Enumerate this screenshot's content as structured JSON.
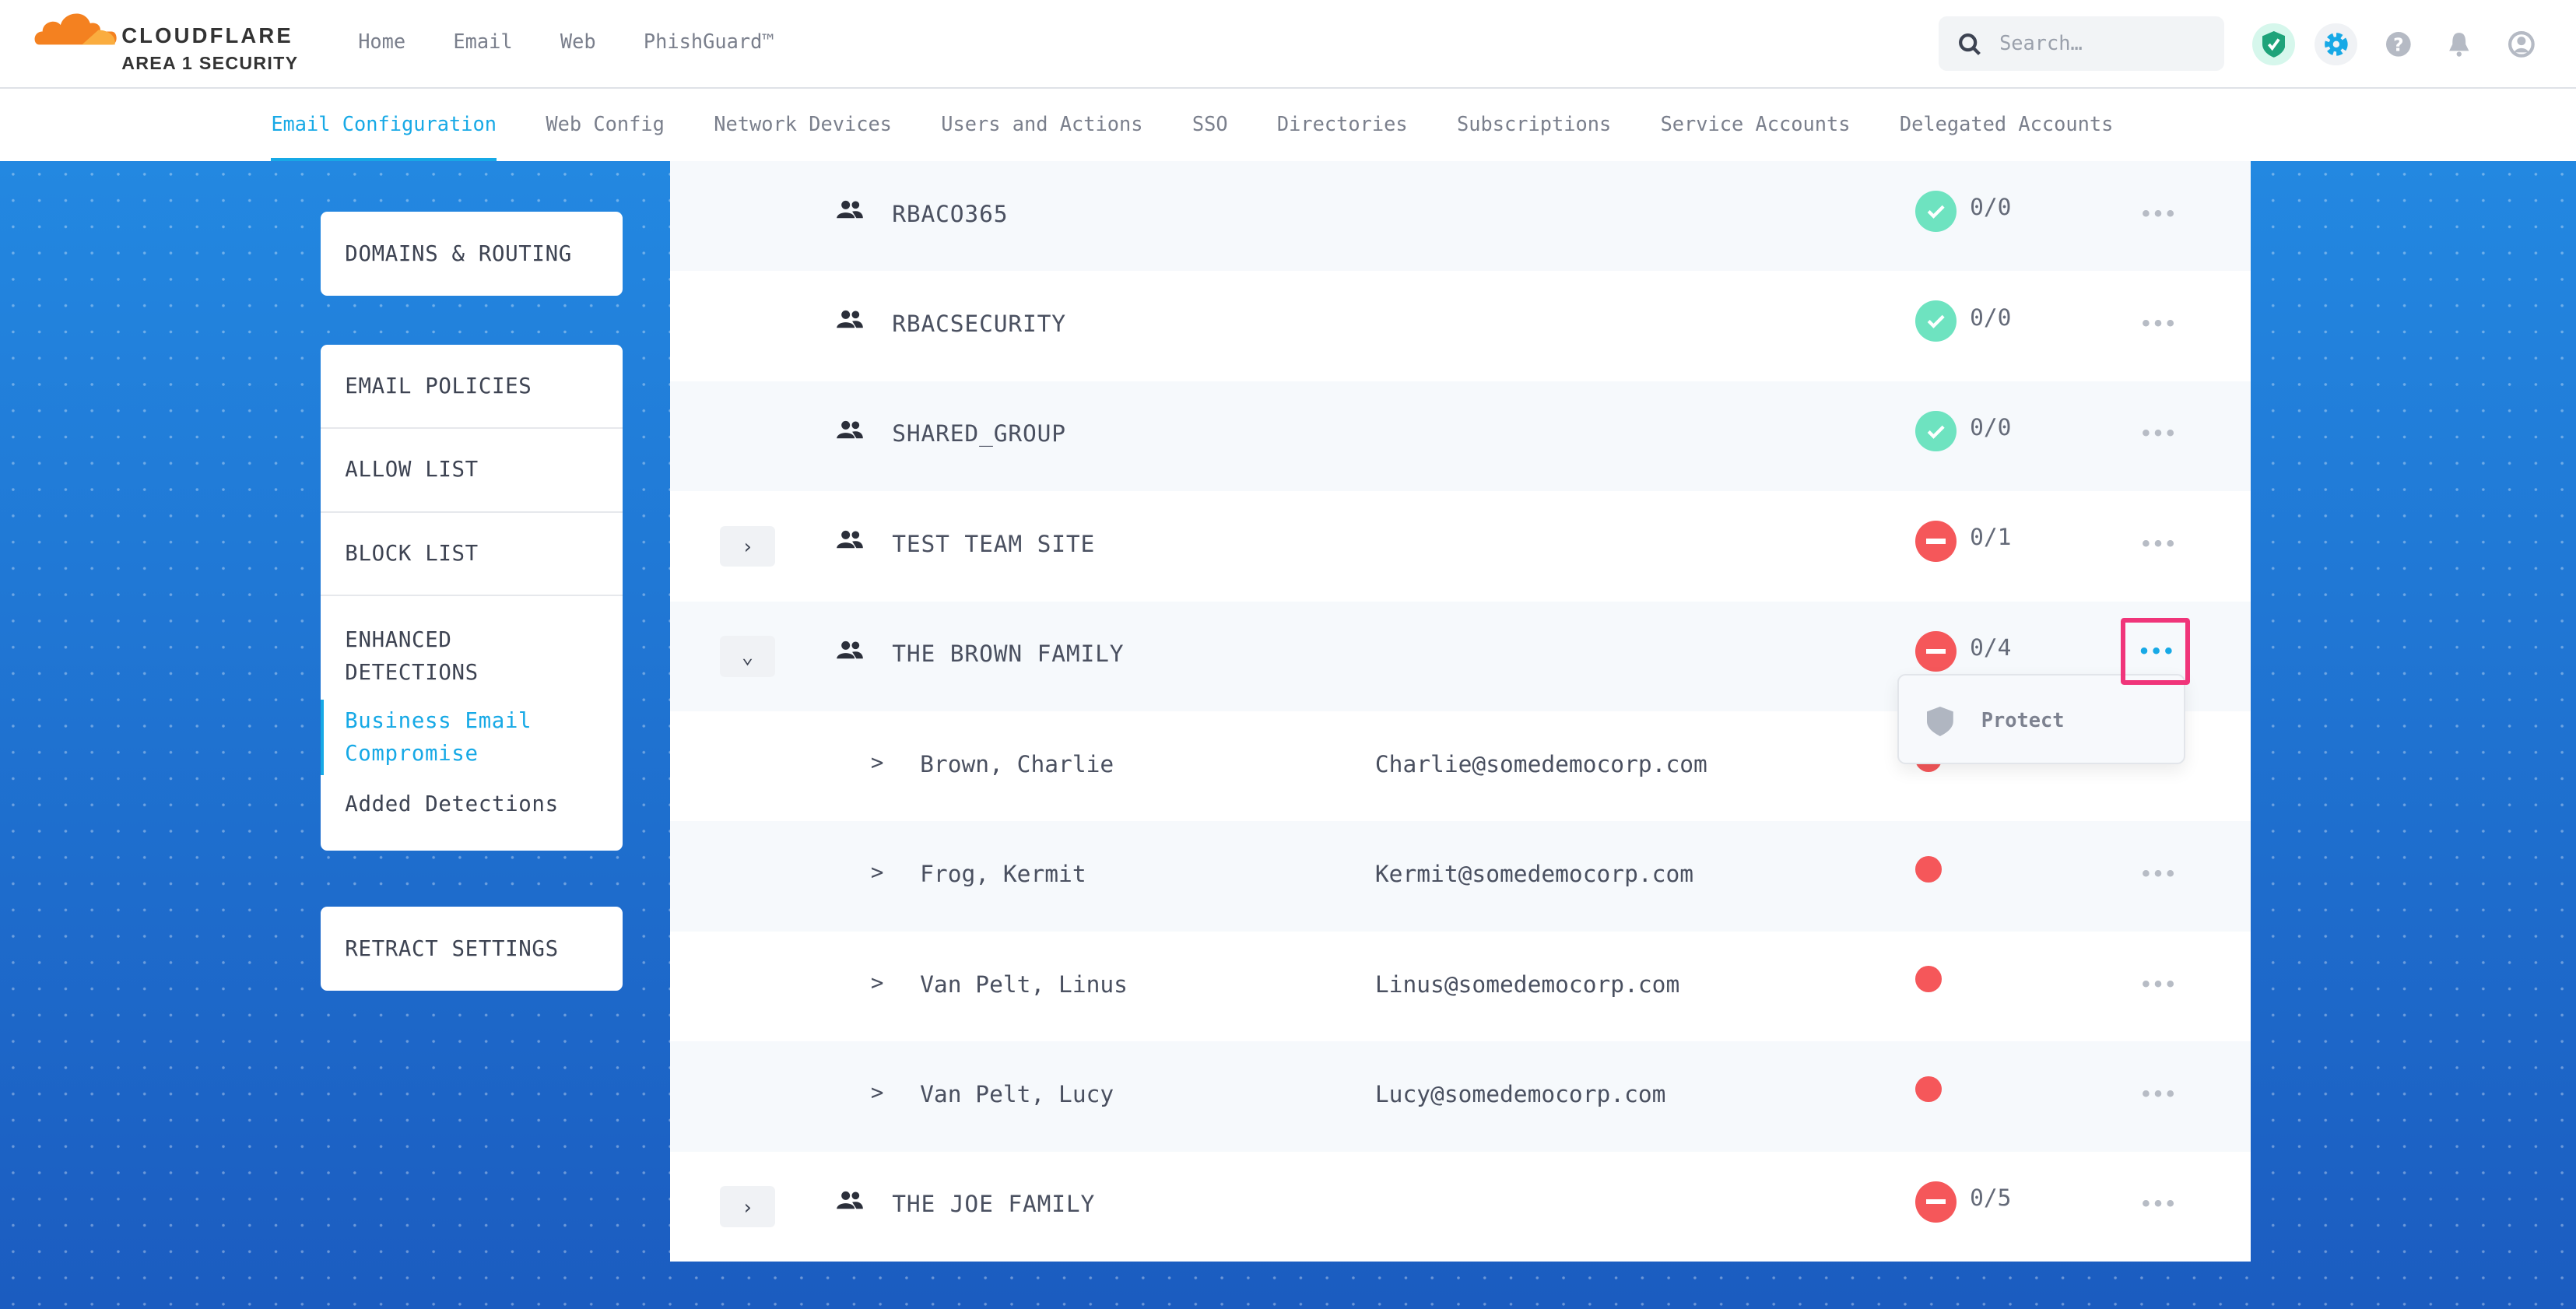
{
  "header": {
    "brand": "CLOUDFLARE",
    "brand_sub": "AREA 1 SECURITY",
    "nav": [
      "Home",
      "Email",
      "Web",
      "PhishGuard™"
    ],
    "search_placeholder": "Search…"
  },
  "subnav": {
    "tabs": [
      "Email Configuration",
      "Web Config",
      "Network Devices",
      "Users and Actions",
      "SSO",
      "Directories",
      "Subscriptions",
      "Service Accounts",
      "Delegated Accounts"
    ],
    "active": "Email Configuration"
  },
  "sidebar": {
    "card1": [
      "DOMAINS & ROUTING"
    ],
    "card2": [
      "EMAIL POLICIES",
      "ALLOW LIST",
      "BLOCK LIST"
    ],
    "enhanced": {
      "title_line1": "ENHANCED",
      "title_line2": "DETECTIONS",
      "links": [
        "Business Email Compromise",
        "Added Detections"
      ]
    },
    "card3": [
      "RETRACT SETTINGS"
    ]
  },
  "groups": [
    {
      "name": "RBACO365",
      "status": "ok",
      "count": "0/0"
    },
    {
      "name": "RBACSECURITY",
      "status": "ok",
      "count": "0/0"
    },
    {
      "name": "SHARED_GROUP",
      "status": "ok",
      "count": "0/0"
    },
    {
      "name": "TEST TEAM SITE",
      "status": "blocked",
      "count": "0/1",
      "expand": "collapsed"
    },
    {
      "name": "THE BROWN FAMILY",
      "status": "blocked",
      "count": "0/4",
      "expand": "expanded"
    }
  ],
  "members": [
    {
      "name": "Brown, Charlie",
      "email": "Charlie@somedemocorp.com"
    },
    {
      "name": "Frog, Kermit",
      "email": "Kermit@somedemocorp.com"
    },
    {
      "name": "Van Pelt, Linus",
      "email": "Linus@somedemocorp.com"
    },
    {
      "name": "Van Pelt, Lucy",
      "email": "Lucy@somedemocorp.com"
    }
  ],
  "last_group": {
    "name": "THE JOE FAMILY",
    "status": "blocked",
    "count": "0/5"
  },
  "row_menu": {
    "items": [
      "Protect"
    ]
  },
  "colors": {
    "accent": "#17a9e6",
    "ok": "#6ee3c0",
    "blocked": "#f5575a",
    "highlight": "#f0357a"
  }
}
